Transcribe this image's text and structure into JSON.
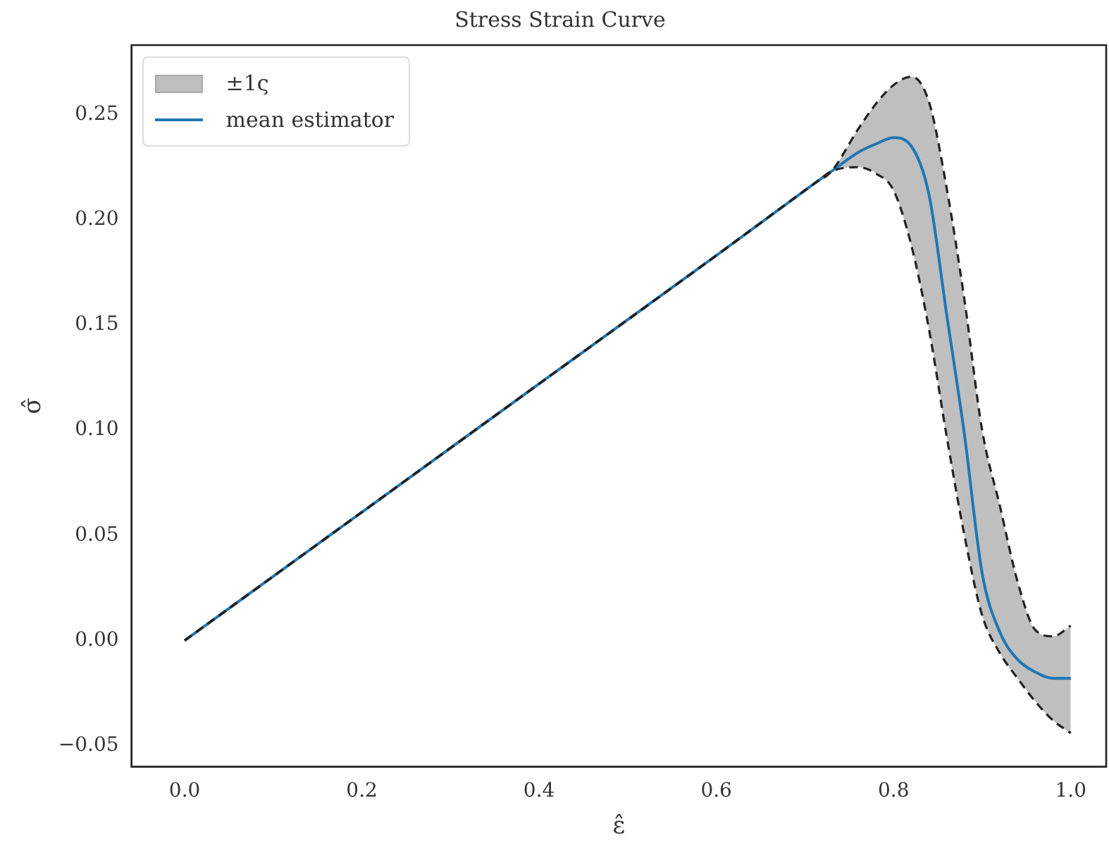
{
  "chart_data": {
    "type": "line",
    "title": "Stress Strain Curve",
    "xlabel": "ε̂",
    "ylabel": "σ̂",
    "xlim": [
      -0.06,
      1.04
    ],
    "ylim": [
      -0.06,
      0.283
    ],
    "xticks": [
      {
        "value": 0,
        "label": "0.0"
      },
      {
        "value": 0.2,
        "label": "0.2"
      },
      {
        "value": 0.4,
        "label": "0.4"
      },
      {
        "value": 0.6,
        "label": "0.6"
      },
      {
        "value": 0.8,
        "label": "0.8"
      },
      {
        "value": 1,
        "label": "1.0"
      }
    ],
    "yticks": [
      {
        "value": -0.05,
        "label": "−0.05"
      },
      {
        "value": 0,
        "label": "0.00"
      },
      {
        "value": 0.05,
        "label": "0.05"
      },
      {
        "value": 0.1,
        "label": "0.10"
      },
      {
        "value": 0.15,
        "label": "0.15"
      },
      {
        "value": 0.2,
        "label": "0.20"
      },
      {
        "value": 0.25,
        "label": "0.25"
      }
    ],
    "grid": false,
    "legend": "top left",
    "marker": "none",
    "annotations": [
      "±1ς"
    ],
    "x": [
      0,
      0.2,
      0.4,
      0.6,
      0.71,
      0.73,
      0.76,
      0.78,
      0.8,
      0.82,
      0.84,
      0.86,
      0.88,
      0.9,
      0.92,
      0.94,
      0.96,
      0.98,
      1.0
    ],
    "series": [
      {
        "name": "mean estimator",
        "type": "line",
        "color": "#1f77b4",
        "line_style": "solid",
        "values": [
          0,
          0.061,
          0.122,
          0.183,
          0.217,
          0.223,
          0.232,
          0.236,
          0.239,
          0.235,
          0.212,
          0.155,
          0.098,
          0.032,
          0.004,
          -0.009,
          -0.015,
          -0.018,
          -0.018
        ],
        "lower": [
          0,
          0.061,
          0.122,
          0.183,
          0.217,
          0.223,
          0.225,
          0.222,
          0.214,
          0.188,
          0.148,
          0.097,
          0.05,
          0.012,
          -0.006,
          -0.018,
          -0.029,
          -0.038,
          -0.044
        ],
        "upper": [
          0,
          0.061,
          0.122,
          0.183,
          0.217,
          0.223,
          0.243,
          0.255,
          0.264,
          0.268,
          0.256,
          0.215,
          0.162,
          0.1,
          0.064,
          0.028,
          0.005,
          0.002,
          0.007
        ]
      },
      {
        "type": "line",
        "color": "#222222",
        "line_style": "dashed",
        "values": [
          0,
          0.061,
          0.122,
          0.183,
          0.217,
          0.223,
          0.243,
          0.255,
          0.264,
          0.268,
          0.256,
          0.215,
          0.162,
          0.1,
          0.064,
          0.028,
          0.005,
          0.002,
          0.007
        ]
      },
      {
        "type": "line",
        "color": "#222222",
        "line_style": "dashed",
        "values": [
          0,
          0.061,
          0.122,
          0.183,
          0.217,
          0.223,
          0.225,
          0.222,
          0.214,
          0.188,
          0.148,
          0.097,
          0.05,
          0.012,
          -0.006,
          -0.018,
          -0.029,
          -0.038,
          -0.044
        ]
      }
    ]
  }
}
